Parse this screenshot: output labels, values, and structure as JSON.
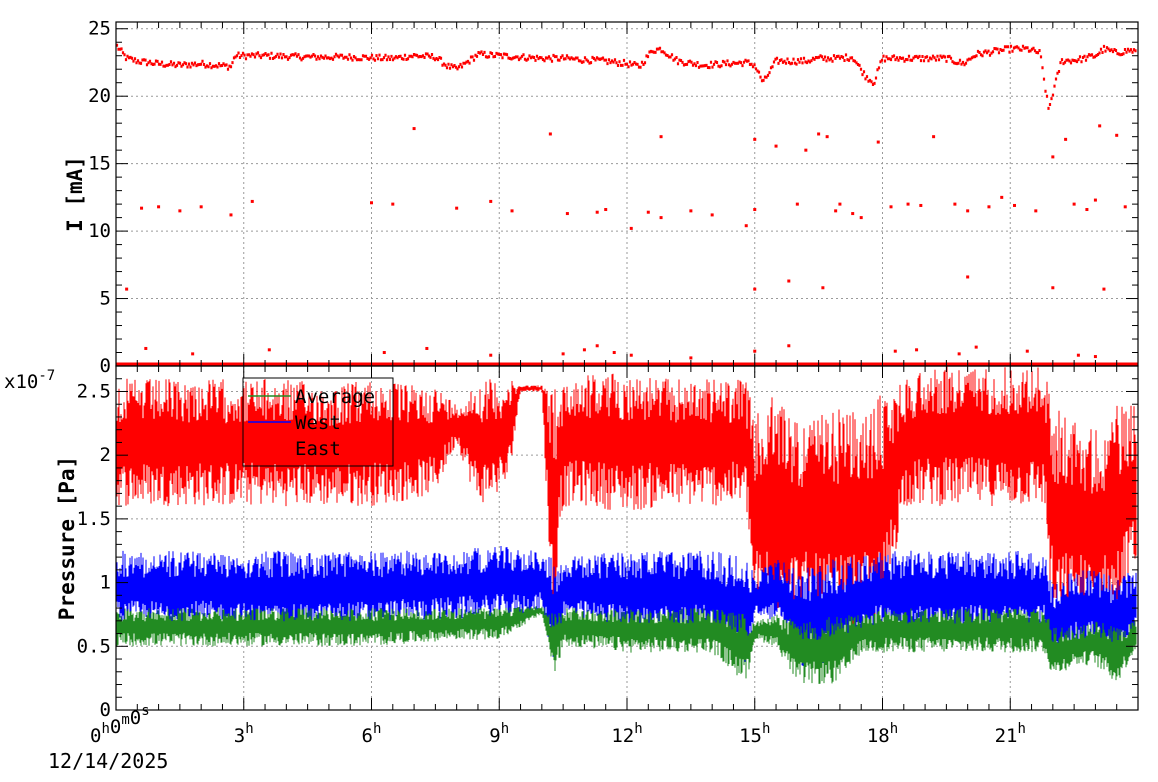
{
  "chart_data": [
    {
      "type": "scatter",
      "name": "current",
      "ylabel": "I [mA]",
      "ylim": [
        0,
        25.5
      ],
      "yticks": [
        0,
        5,
        10,
        15,
        20,
        25
      ],
      "xlim_hours": [
        0,
        24
      ],
      "grid": true,
      "color": "#ff0000",
      "series": [
        {
          "main_band": {
            "x": [
              0,
              0.25,
              0.5,
              1.0,
              1.5,
              2.0,
              2.7,
              2.8,
              3.5,
              4.5,
              5.5,
              6.5,
              7.0,
              7.5,
              7.8,
              8.0,
              8.2,
              8.5,
              9.0,
              9.5,
              10.0,
              10.5,
              11.0,
              11.5,
              12.0,
              12.3,
              12.6,
              12.8,
              13.2,
              13.8,
              14.3,
              14.8,
              15.0,
              15.2,
              15.5,
              15.8,
              16.2,
              16.5,
              16.9,
              17.3,
              17.6,
              17.8,
              18.0,
              18.5,
              19.0,
              19.5,
              19.9,
              20.2,
              20.6,
              21.0,
              21.4,
              21.7,
              21.9,
              22.2,
              22.6,
              23.0,
              23.2,
              23.5,
              23.8,
              24.0
            ],
            "y": [
              23.8,
              22.8,
              22.6,
              22.4,
              22.3,
              22.4,
              22.2,
              23.0,
              23.0,
              22.9,
              22.9,
              22.8,
              23.0,
              22.9,
              22.2,
              22.0,
              22.4,
              23.1,
              23.0,
              22.9,
              22.8,
              22.8,
              22.7,
              22.6,
              22.4,
              22.2,
              23.4,
              23.5,
              22.6,
              22.3,
              22.4,
              22.5,
              22.3,
              21.0,
              22.6,
              22.6,
              22.6,
              22.8,
              22.8,
              22.9,
              21.5,
              21.0,
              22.8,
              22.8,
              22.8,
              22.8,
              22.4,
              23.1,
              23.3,
              23.5,
              23.5,
              23.2,
              19.0,
              22.6,
              22.7,
              23.0,
              23.5,
              23.2,
              23.4,
              23.3
            ]
          },
          "scatter_points": [
            [
              0.25,
              5.7
            ],
            [
              0.6,
              11.7
            ],
            [
              1.0,
              11.8
            ],
            [
              1.5,
              11.5
            ],
            [
              2.0,
              11.8
            ],
            [
              2.7,
              11.2
            ],
            [
              3.2,
              12.2
            ],
            [
              6.0,
              12.1
            ],
            [
              6.5,
              12.0
            ],
            [
              7.0,
              17.6
            ],
            [
              8.0,
              11.7
            ],
            [
              8.8,
              12.2
            ],
            [
              9.3,
              11.5
            ],
            [
              10.2,
              17.2
            ],
            [
              10.6,
              11.3
            ],
            [
              11.3,
              11.4
            ],
            [
              11.5,
              11.6
            ],
            [
              12.1,
              10.2
            ],
            [
              12.5,
              11.4
            ],
            [
              12.8,
              11.0
            ],
            [
              12.8,
              17.0
            ],
            [
              13.5,
              11.5
            ],
            [
              14.0,
              11.2
            ],
            [
              14.8,
              10.4
            ],
            [
              15.0,
              11.6
            ],
            [
              15.0,
              16.8
            ],
            [
              15.0,
              5.7
            ],
            [
              15.5,
              16.3
            ],
            [
              15.8,
              6.3
            ],
            [
              16.0,
              12.0
            ],
            [
              16.2,
              16.0
            ],
            [
              16.5,
              17.2
            ],
            [
              16.7,
              17.0
            ],
            [
              16.6,
              5.8
            ],
            [
              16.9,
              11.5
            ],
            [
              17.0,
              12.0
            ],
            [
              17.3,
              11.3
            ],
            [
              17.5,
              11.0
            ],
            [
              17.9,
              16.6
            ],
            [
              18.2,
              11.8
            ],
            [
              18.6,
              12.0
            ],
            [
              18.9,
              11.9
            ],
            [
              19.2,
              17.0
            ],
            [
              19.7,
              12.0
            ],
            [
              20.0,
              11.5
            ],
            [
              20.0,
              6.6
            ],
            [
              20.5,
              11.8
            ],
            [
              20.8,
              12.5
            ],
            [
              21.1,
              11.9
            ],
            [
              21.6,
              11.5
            ],
            [
              22.0,
              15.5
            ],
            [
              22.0,
              5.8
            ],
            [
              22.3,
              16.8
            ],
            [
              22.5,
              12.0
            ],
            [
              22.8,
              11.6
            ],
            [
              23.0,
              12.3
            ],
            [
              23.1,
              17.8
            ],
            [
              23.2,
              5.7
            ],
            [
              23.5,
              17.1
            ],
            [
              23.7,
              11.8
            ],
            [
              0.7,
              1.3
            ],
            [
              1.8,
              0.9
            ],
            [
              3.6,
              1.2
            ],
            [
              6.3,
              1.0
            ],
            [
              7.3,
              1.3
            ],
            [
              8.8,
              0.8
            ],
            [
              10.5,
              0.9
            ],
            [
              11.0,
              1.2
            ],
            [
              11.3,
              1.5
            ],
            [
              11.7,
              1.0
            ],
            [
              12.1,
              0.8
            ],
            [
              13.5,
              0.6
            ],
            [
              15.0,
              1.1
            ],
            [
              15.8,
              1.5
            ],
            [
              18.3,
              1.1
            ],
            [
              18.8,
              1.2
            ],
            [
              19.8,
              0.9
            ],
            [
              20.2,
              1.4
            ],
            [
              21.4,
              1.1
            ],
            [
              22.6,
              0.8
            ],
            [
              23.0,
              0.7
            ]
          ],
          "baseline": 0.15
        }
      ]
    },
    {
      "type": "line",
      "name": "pressure",
      "ylabel": "Pressure [Pa]",
      "y_exponent_label": "x10",
      "y_exponent": "-7",
      "ylim": [
        0,
        2.7
      ],
      "yticks": [
        0,
        0.5,
        1,
        1.5,
        2,
        2.5
      ],
      "ytick_labels": [
        "0",
        "0.5",
        "1",
        "1.5",
        "2",
        "2.5"
      ],
      "xlim_hours": [
        0,
        24
      ],
      "grid": true,
      "legend": {
        "placement": "top-left",
        "entries": [
          "Average",
          "West",
          "East"
        ],
        "colors": [
          "#228b22",
          "#0000ff",
          "#ff0000"
        ]
      },
      "series": [
        {
          "name": "East",
          "color": "#ff0000",
          "envelope_x": [
            0,
            1,
            2,
            3,
            4,
            5,
            6,
            7,
            7.5,
            8,
            8.5,
            9,
            9.2,
            9.5,
            10,
            10.3,
            10.4,
            10.6,
            11,
            12,
            13,
            14,
            14.8,
            15.0,
            15.5,
            16.0,
            16.5,
            17.0,
            17.5,
            18.0,
            18.5,
            19.0,
            20,
            21,
            21.8,
            22.0,
            22.5,
            23.0,
            23.5,
            24.0
          ],
          "high": [
            2.6,
            2.6,
            2.6,
            2.6,
            2.6,
            2.55,
            2.6,
            2.55,
            2.55,
            2.4,
            2.6,
            2.6,
            2.6,
            2.55,
            2.55,
            2.55,
            2.55,
            2.6,
            2.65,
            2.65,
            2.6,
            2.6,
            2.6,
            2.3,
            2.5,
            2.3,
            2.3,
            2.4,
            2.3,
            2.5,
            2.6,
            2.7,
            2.7,
            2.7,
            2.7,
            2.4,
            2.3,
            2.2,
            2.4,
            2.4
          ],
          "low": [
            1.6,
            1.6,
            1.6,
            1.6,
            1.6,
            1.6,
            1.6,
            1.65,
            1.7,
            2.1,
            1.6,
            1.7,
            1.75,
            2.5,
            2.5,
            0.3,
            1.5,
            1.6,
            1.6,
            1.55,
            1.6,
            1.6,
            1.6,
            0.7,
            0.75,
            0.7,
            0.65,
            0.6,
            0.65,
            0.65,
            1.6,
            1.6,
            1.6,
            1.6,
            1.6,
            0.6,
            0.7,
            0.65,
            0.7,
            1.2
          ]
        },
        {
          "name": "West",
          "color": "#0000ff",
          "envelope_x": [
            0,
            2,
            4,
            6,
            8,
            9,
            10,
            10.3,
            10.5,
            12,
            14,
            14.8,
            15.0,
            15.5,
            16.0,
            16.5,
            17.0,
            17.5,
            18.0,
            19,
            20,
            21,
            21.8,
            22.0,
            22.5,
            23.0,
            23.5,
            24.0
          ],
          "high": [
            1.25,
            1.25,
            1.25,
            1.25,
            1.25,
            1.3,
            1.25,
            1.2,
            1.2,
            1.25,
            1.25,
            1.2,
            1.05,
            1.2,
            1.1,
            1.15,
            1.2,
            1.2,
            1.25,
            1.25,
            1.25,
            1.25,
            1.25,
            1.0,
            1.1,
            1.1,
            1.05,
            1.1
          ],
          "low": [
            0.65,
            0.65,
            0.6,
            0.65,
            0.7,
            0.7,
            0.75,
            0.3,
            0.7,
            0.6,
            0.6,
            0.3,
            0.7,
            0.7,
            0.35,
            0.3,
            0.35,
            0.6,
            0.6,
            0.6,
            0.6,
            0.6,
            0.6,
            0.35,
            0.5,
            0.5,
            0.3,
            0.6
          ]
        },
        {
          "name": "Average",
          "color": "#228b22",
          "envelope_x": [
            0,
            2,
            4,
            6,
            8,
            9,
            10,
            10.3,
            10.5,
            12,
            14,
            14.8,
            15.0,
            15.5,
            16.0,
            16.5,
            17.0,
            17.5,
            18.0,
            19,
            20,
            21,
            21.8,
            22.0,
            22.5,
            23.0,
            23.5,
            24.0
          ],
          "high": [
            0.8,
            0.8,
            0.8,
            0.8,
            0.8,
            0.8,
            0.82,
            0.75,
            0.8,
            0.8,
            0.8,
            0.75,
            0.7,
            0.75,
            0.7,
            0.72,
            0.75,
            0.75,
            0.8,
            0.8,
            0.8,
            0.8,
            0.8,
            0.65,
            0.65,
            0.7,
            0.65,
            0.72
          ],
          "low": [
            0.5,
            0.5,
            0.5,
            0.5,
            0.55,
            0.55,
            0.75,
            0.25,
            0.5,
            0.45,
            0.45,
            0.2,
            0.55,
            0.5,
            0.2,
            0.2,
            0.2,
            0.45,
            0.45,
            0.45,
            0.45,
            0.45,
            0.45,
            0.25,
            0.35,
            0.35,
            0.2,
            0.5
          ]
        }
      ]
    }
  ],
  "x_axis": {
    "tick_hours": [
      0,
      3,
      6,
      9,
      12,
      15,
      18,
      21
    ],
    "labels": [
      {
        "base": "0",
        "parts": [
          [
            "0",
            "h"
          ],
          [
            "0",
            "m"
          ],
          [
            "0",
            "s"
          ]
        ]
      },
      {
        "base": "3",
        "sup": "h"
      },
      {
        "base": "6",
        "sup": "h"
      },
      {
        "base": "9",
        "sup": "h"
      },
      {
        "base": "12",
        "sup": "h"
      },
      {
        "base": "15",
        "sup": "h"
      },
      {
        "base": "18",
        "sup": "h"
      },
      {
        "base": "21",
        "sup": "h"
      }
    ],
    "date": "12/14/2025"
  }
}
